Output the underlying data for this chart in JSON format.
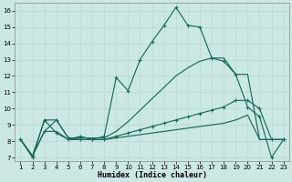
{
  "xlabel": "Humidex (Indice chaleur)",
  "xlim": [
    0.5,
    23.5
  ],
  "ylim": [
    6.8,
    16.5
  ],
  "yticks": [
    7,
    8,
    9,
    10,
    11,
    12,
    13,
    14,
    15,
    16
  ],
  "xticks": [
    1,
    2,
    3,
    4,
    5,
    6,
    7,
    8,
    9,
    10,
    11,
    12,
    13,
    14,
    15,
    16,
    17,
    18,
    19,
    20,
    21,
    22,
    23
  ],
  "bg_color": "#cce8e4",
  "grid_color": "#b8d8d4",
  "line_color": "#1a6b5a",
  "curve1_x": [
    1,
    2,
    3,
    4,
    5,
    6,
    7,
    8,
    9,
    10,
    11,
    12,
    13,
    14,
    15,
    16,
    17,
    18,
    19,
    20,
    21,
    22,
    23
  ],
  "curve1_y": [
    8.1,
    7.0,
    9.3,
    8.5,
    8.1,
    8.3,
    8.1,
    8.3,
    11.9,
    11.1,
    13.0,
    14.1,
    15.1,
    16.2,
    15.1,
    15.0,
    13.1,
    12.9,
    12.1,
    10.1,
    9.5,
    7.0,
    8.1
  ],
  "curve2_x": [
    1,
    2,
    3,
    4,
    5,
    6,
    7,
    8,
    9,
    10,
    11,
    12,
    13,
    14,
    15,
    16,
    17,
    18,
    19,
    20,
    21,
    22,
    23
  ],
  "curve2_y": [
    8.1,
    7.1,
    8.6,
    9.3,
    8.2,
    8.1,
    8.1,
    8.1,
    8.3,
    8.5,
    8.7,
    8.9,
    9.1,
    9.3,
    9.5,
    9.7,
    9.9,
    10.1,
    10.5,
    10.5,
    10.0,
    8.1,
    8.1
  ],
  "curve3_x": [
    1,
    2,
    3,
    4,
    5,
    6,
    7,
    8,
    9,
    10,
    11,
    12,
    13,
    14,
    15,
    16,
    17,
    18,
    19,
    20,
    21,
    22,
    23
  ],
  "curve3_y": [
    8.1,
    7.1,
    8.6,
    8.6,
    8.1,
    8.1,
    8.1,
    8.1,
    8.2,
    8.3,
    8.4,
    8.5,
    8.6,
    8.7,
    8.8,
    8.9,
    9.0,
    9.1,
    9.3,
    9.6,
    8.1,
    8.1,
    8.1
  ],
  "curve4_x": [
    1,
    2,
    3,
    4,
    5,
    6,
    7,
    8,
    9,
    10,
    11,
    12,
    13,
    14,
    15,
    16,
    17,
    18,
    19,
    20,
    21,
    22,
    23
  ],
  "curve4_y": [
    8.1,
    7.1,
    9.3,
    9.3,
    8.2,
    8.2,
    8.2,
    8.2,
    8.6,
    9.2,
    9.9,
    10.6,
    11.3,
    12.0,
    12.5,
    12.9,
    13.1,
    13.1,
    12.1,
    12.1,
    8.1,
    8.1,
    8.1
  ]
}
